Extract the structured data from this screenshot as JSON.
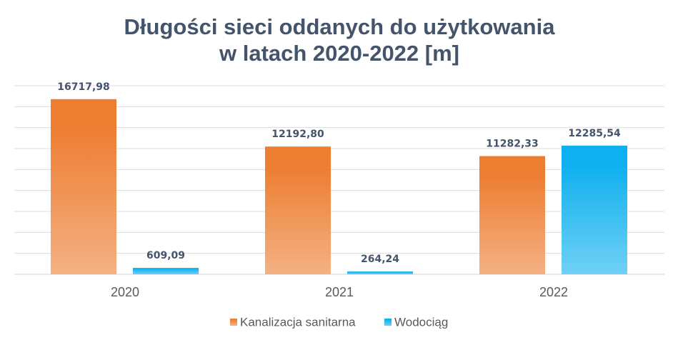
{
  "chart_data": {
    "type": "bar",
    "title": [
      "Długości sieci oddanych do użytkowania",
      "w latach 2020-2022 [m]"
    ],
    "categories": [
      "2020",
      "2021",
      "2022"
    ],
    "series": [
      {
        "name": "Kanalizacja sanitarna",
        "color": "#ed7d31",
        "values": [
          16717.98,
          12192.8,
          11282.33
        ],
        "value_labels": [
          "16717,98",
          "12192,80",
          "11282,33"
        ]
      },
      {
        "name": "Wodociąg",
        "color": "#0fb0ef",
        "values": [
          609.09,
          264.24,
          12285.54
        ],
        "value_labels": [
          "609,09",
          "264,24",
          "12285,54"
        ]
      }
    ],
    "ylim": [
      0,
      18000
    ],
    "yticks": [
      0,
      2000,
      4000,
      6000,
      8000,
      10000,
      12000,
      14000,
      16000,
      18000
    ],
    "grid": true,
    "legend": "bottom"
  }
}
